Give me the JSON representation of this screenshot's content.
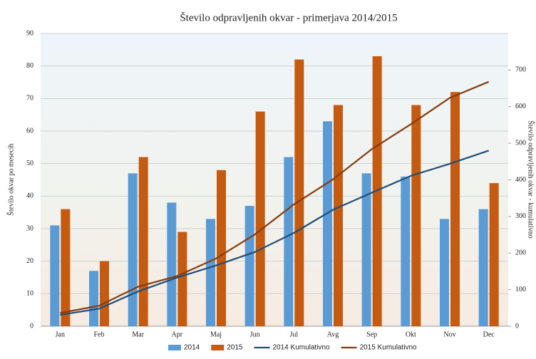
{
  "chart_data": {
    "type": "bar",
    "title": "Število odpravljenih okvar - primerjava 2014/2015",
    "y_label": "Število okvar po mesecih",
    "y2_label": "Število odpravljenih okvar - kumulativno",
    "categories": [
      "Jan",
      "Feb",
      "Mar",
      "Apr",
      "Maj",
      "Jun",
      "Jul",
      "Avg",
      "Sep",
      "Okt",
      "Nov",
      "Dec"
    ],
    "series": [
      {
        "name": "2014",
        "type": "bar",
        "color": "#5b9bd5",
        "values": [
          31,
          17,
          47,
          38,
          33,
          37,
          52,
          63,
          47,
          46,
          33,
          36
        ]
      },
      {
        "name": "2015",
        "type": "bar",
        "color": "#c55a11",
        "values": [
          36,
          20,
          52,
          29,
          48,
          66,
          82,
          68,
          83,
          68,
          72,
          44
        ]
      },
      {
        "name": "2014 Kumulativno",
        "type": "line",
        "axis": "y2",
        "color": "#1f4e79",
        "values": [
          31,
          48,
          95,
          133,
          166,
          203,
          255,
          318,
          365,
          411,
          444,
          480
        ]
      },
      {
        "name": "2015 Kumulativno",
        "type": "line",
        "axis": "y2",
        "color": "#843c0c",
        "values": [
          36,
          56,
          108,
          137,
          185,
          251,
          333,
          401,
          484,
          552,
          624,
          668
        ]
      }
    ],
    "ylim": [
      0,
      90
    ],
    "yticks": [
      0,
      10,
      20,
      30,
      40,
      50,
      60,
      70,
      80,
      90
    ],
    "y2lim": [
      0,
      800
    ],
    "y2ticks": [
      0,
      100,
      200,
      300,
      400,
      500,
      600,
      700
    ],
    "grid": true
  }
}
